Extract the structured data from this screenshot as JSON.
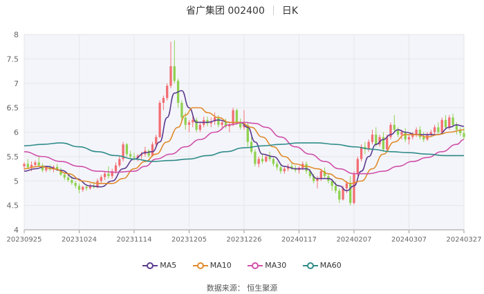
{
  "title": {
    "stock_name": "省广集团 002400",
    "period": "日K"
  },
  "source": "数据来源： 恒生聚源",
  "colors": {
    "up": "#f26d72",
    "down": "#8fd14f",
    "ma5": "#5b3a8e",
    "ma10": "#e08a2b",
    "ma30": "#d04fa8",
    "ma60": "#2e8b88",
    "grid": "#e6e6e6",
    "plot_bg": "#f4f5fb"
  },
  "chart_data": {
    "type": "candlestick",
    "x_ticks": [
      "20230925",
      "20231024",
      "20231114",
      "20231205",
      "20231226",
      "20240117",
      "20240207",
      "20240307",
      "20240327"
    ],
    "y_ticks": [
      "4",
      "4.5",
      "5",
      "5.5",
      "6",
      "6.5",
      "7",
      "7.5",
      "8"
    ],
    "ylim": [
      4,
      8
    ],
    "num_days": 121,
    "x_tick_index": [
      0,
      15,
      30,
      45,
      60,
      75,
      90,
      105,
      120
    ],
    "legend": [
      "MA5",
      "MA10",
      "MA30",
      "MA60"
    ],
    "ohlc": [
      [
        5.3,
        5.38,
        5.22,
        5.35
      ],
      [
        5.35,
        5.45,
        5.25,
        5.28
      ],
      [
        5.28,
        5.4,
        5.2,
        5.33
      ],
      [
        5.33,
        5.42,
        5.28,
        5.38
      ],
      [
        5.38,
        5.5,
        5.3,
        5.32
      ],
      [
        5.32,
        5.36,
        5.18,
        5.22
      ],
      [
        5.22,
        5.3,
        5.18,
        5.27
      ],
      [
        5.27,
        5.33,
        5.2,
        5.24
      ],
      [
        5.24,
        5.32,
        5.18,
        5.29
      ],
      [
        5.29,
        5.35,
        5.2,
        5.23
      ],
      [
        5.23,
        5.27,
        5.1,
        5.13
      ],
      [
        5.13,
        5.18,
        5.02,
        5.07
      ],
      [
        5.07,
        5.12,
        4.98,
        5.02
      ],
      [
        5.02,
        5.1,
        4.92,
        4.96
      ],
      [
        4.96,
        5.0,
        4.85,
        4.9
      ],
      [
        4.9,
        4.95,
        4.75,
        4.82
      ],
      [
        4.82,
        4.9,
        4.78,
        4.88
      ],
      [
        4.88,
        4.92,
        4.8,
        4.85
      ],
      [
        4.85,
        4.95,
        4.82,
        4.9
      ],
      [
        4.9,
        4.98,
        4.85,
        4.87
      ],
      [
        4.87,
        5.05,
        4.85,
        5.0
      ],
      [
        5.0,
        5.12,
        4.96,
        5.08
      ],
      [
        5.08,
        5.2,
        5.02,
        5.15
      ],
      [
        5.15,
        5.3,
        5.05,
        5.1
      ],
      [
        5.1,
        5.25,
        5.05,
        5.2
      ],
      [
        5.2,
        5.38,
        5.15,
        5.32
      ],
      [
        5.32,
        5.5,
        5.28,
        5.45
      ],
      [
        5.45,
        5.8,
        5.4,
        5.75
      ],
      [
        5.75,
        5.78,
        5.5,
        5.55
      ],
      [
        5.55,
        5.62,
        5.45,
        5.5
      ],
      [
        5.5,
        5.58,
        5.42,
        5.48
      ],
      [
        5.48,
        5.55,
        5.4,
        5.52
      ],
      [
        5.52,
        5.6,
        5.45,
        5.55
      ],
      [
        5.55,
        5.7,
        5.5,
        5.62
      ],
      [
        5.62,
        5.65,
        5.48,
        5.52
      ],
      [
        5.52,
        5.8,
        5.5,
        5.75
      ],
      [
        5.75,
        5.95,
        5.7,
        5.9
      ],
      [
        5.9,
        6.65,
        5.88,
        6.6
      ],
      [
        6.6,
        6.75,
        6.45,
        6.7
      ],
      [
        6.7,
        7.0,
        6.65,
        6.95
      ],
      [
        6.95,
        7.85,
        6.9,
        7.35
      ],
      [
        7.35,
        7.88,
        7.0,
        7.05
      ],
      [
        7.05,
        7.1,
        6.5,
        6.6
      ],
      [
        6.6,
        6.65,
        6.2,
        6.3
      ],
      [
        6.3,
        6.4,
        6.05,
        6.15
      ],
      [
        6.15,
        6.25,
        6.0,
        6.2
      ],
      [
        6.2,
        6.35,
        6.1,
        6.25
      ],
      [
        6.25,
        6.3,
        6.0,
        6.05
      ],
      [
        6.05,
        6.2,
        6.0,
        6.15
      ],
      [
        6.15,
        6.32,
        6.1,
        6.25
      ],
      [
        6.25,
        6.32,
        6.12,
        6.18
      ],
      [
        6.18,
        6.3,
        6.1,
        6.22
      ],
      [
        6.22,
        6.4,
        6.15,
        6.3
      ],
      [
        6.3,
        6.35,
        6.1,
        6.15
      ],
      [
        6.15,
        6.25,
        6.05,
        6.2
      ],
      [
        6.2,
        6.28,
        6.08,
        6.12
      ],
      [
        6.12,
        6.2,
        6.0,
        6.15
      ],
      [
        6.15,
        6.5,
        6.12,
        6.45
      ],
      [
        6.45,
        6.48,
        6.15,
        6.2
      ],
      [
        6.2,
        6.28,
        6.05,
        6.1
      ],
      [
        6.1,
        6.45,
        6.05,
        6.15
      ],
      [
        6.15,
        6.2,
        5.7,
        5.8
      ],
      [
        5.8,
        5.9,
        5.55,
        5.6
      ],
      [
        5.6,
        5.65,
        5.3,
        5.35
      ],
      [
        5.35,
        5.5,
        5.28,
        5.45
      ],
      [
        5.45,
        5.55,
        5.35,
        5.4
      ],
      [
        5.4,
        5.55,
        5.38,
        5.5
      ],
      [
        5.5,
        5.6,
        5.4,
        5.45
      ],
      [
        5.45,
        5.5,
        5.3,
        5.35
      ],
      [
        5.35,
        5.4,
        5.22,
        5.28
      ],
      [
        5.28,
        5.35,
        5.15,
        5.2
      ],
      [
        5.2,
        5.3,
        5.15,
        5.25
      ],
      [
        5.25,
        5.35,
        5.2,
        5.3
      ],
      [
        5.3,
        5.38,
        5.22,
        5.26
      ],
      [
        5.26,
        5.32,
        5.18,
        5.22
      ],
      [
        5.22,
        5.3,
        5.15,
        5.27
      ],
      [
        5.27,
        5.4,
        5.22,
        5.35
      ],
      [
        5.35,
        5.4,
        5.15,
        5.2
      ],
      [
        5.2,
        5.25,
        5.05,
        5.1
      ],
      [
        5.1,
        5.15,
        4.95,
        5.0
      ],
      [
        5.0,
        5.1,
        4.85,
        5.05
      ],
      [
        5.05,
        5.25,
        5.0,
        5.2
      ],
      [
        5.2,
        5.28,
        5.05,
        5.1
      ],
      [
        5.1,
        5.15,
        4.95,
        5.0
      ],
      [
        5.0,
        5.05,
        4.8,
        4.9
      ],
      [
        4.9,
        4.98,
        4.75,
        4.8
      ],
      [
        4.8,
        4.85,
        4.55,
        4.62
      ],
      [
        4.62,
        4.9,
        4.6,
        4.85
      ],
      [
        4.85,
        5.0,
        4.75,
        4.95
      ],
      [
        4.95,
        5.1,
        4.5,
        4.55
      ],
      [
        4.55,
        5.2,
        4.52,
        5.15
      ],
      [
        5.15,
        5.5,
        5.1,
        5.45
      ],
      [
        5.45,
        5.75,
        5.4,
        5.7
      ],
      [
        5.7,
        5.8,
        5.55,
        5.65
      ],
      [
        5.65,
        5.85,
        5.6,
        5.8
      ],
      [
        5.8,
        6.05,
        5.75,
        5.95
      ],
      [
        5.95,
        6.1,
        5.7,
        5.75
      ],
      [
        5.75,
        5.95,
        5.7,
        5.9
      ],
      [
        5.9,
        6.0,
        5.6,
        5.65
      ],
      [
        5.65,
        5.95,
        5.62,
        5.9
      ],
      [
        5.9,
        6.2,
        5.85,
        6.15
      ],
      [
        6.15,
        6.35,
        6.0,
        6.05
      ],
      [
        6.05,
        6.1,
        5.9,
        5.95
      ],
      [
        5.95,
        6.05,
        5.85,
        6.0
      ],
      [
        6.0,
        6.08,
        5.8,
        5.85
      ],
      [
        5.85,
        5.95,
        5.75,
        5.9
      ],
      [
        5.9,
        6.0,
        5.85,
        5.95
      ],
      [
        5.95,
        6.1,
        5.9,
        6.05
      ],
      [
        6.05,
        6.12,
        5.85,
        5.9
      ],
      [
        5.9,
        6.0,
        5.8,
        5.85
      ],
      [
        5.85,
        6.0,
        5.82,
        5.95
      ],
      [
        5.95,
        6.05,
        5.9,
        6.0
      ],
      [
        6.0,
        6.15,
        5.95,
        6.1
      ],
      [
        6.1,
        6.2,
        5.95,
        6.0
      ],
      [
        6.0,
        6.3,
        5.98,
        6.25
      ],
      [
        6.25,
        6.35,
        6.05,
        6.1
      ],
      [
        6.1,
        6.35,
        6.05,
        6.3
      ],
      [
        6.3,
        6.38,
        6.1,
        6.15
      ],
      [
        6.15,
        6.2,
        5.95,
        6.05
      ],
      [
        6.05,
        6.1,
        5.92,
        5.98
      ],
      [
        5.98,
        6.1,
        5.85,
        5.9
      ]
    ],
    "ma": {
      "MA5": [
        [
          0,
          5.2
        ],
        [
          3,
          5.25
        ],
        [
          6,
          5.3
        ],
        [
          10,
          5.22
        ],
        [
          14,
          5.05
        ],
        [
          18,
          4.9
        ],
        [
          21,
          4.88
        ],
        [
          24,
          5.0
        ],
        [
          27,
          5.25
        ],
        [
          30,
          5.45
        ],
        [
          33,
          5.58
        ],
        [
          35,
          5.6
        ],
        [
          37,
          5.8
        ],
        [
          39,
          6.3
        ],
        [
          41,
          6.8
        ],
        [
          43,
          6.85
        ],
        [
          45,
          6.5
        ],
        [
          47,
          6.2
        ],
        [
          50,
          6.2
        ],
        [
          53,
          6.25
        ],
        [
          56,
          6.2
        ],
        [
          59,
          6.2
        ],
        [
          61,
          6.1
        ],
        [
          63,
          5.8
        ],
        [
          65,
          5.55
        ],
        [
          68,
          5.5
        ],
        [
          71,
          5.3
        ],
        [
          74,
          5.25
        ],
        [
          77,
          5.25
        ],
        [
          80,
          5.05
        ],
        [
          83,
          5.05
        ],
        [
          86,
          4.9
        ],
        [
          88,
          4.8
        ],
        [
          90,
          4.9
        ],
        [
          92,
          5.2
        ],
        [
          94,
          5.5
        ],
        [
          96,
          5.75
        ],
        [
          98,
          5.85
        ],
        [
          100,
          5.95
        ],
        [
          102,
          6.05
        ],
        [
          104,
          6.0
        ],
        [
          107,
          5.95
        ],
        [
          110,
          5.95
        ],
        [
          113,
          5.95
        ],
        [
          116,
          6.1
        ],
        [
          118,
          6.15
        ],
        [
          120,
          6.12
        ]
      ],
      "MA10": [
        [
          0,
          5.25
        ],
        [
          4,
          5.3
        ],
        [
          8,
          5.25
        ],
        [
          12,
          5.15
        ],
        [
          16,
          5.0
        ],
        [
          20,
          4.95
        ],
        [
          24,
          4.95
        ],
        [
          27,
          5.05
        ],
        [
          30,
          5.25
        ],
        [
          33,
          5.4
        ],
        [
          36,
          5.55
        ],
        [
          39,
          5.8
        ],
        [
          42,
          6.1
        ],
        [
          44,
          6.35
        ],
        [
          46,
          6.5
        ],
        [
          48,
          6.5
        ],
        [
          50,
          6.4
        ],
        [
          53,
          6.3
        ],
        [
          56,
          6.2
        ],
        [
          59,
          6.2
        ],
        [
          62,
          6.1
        ],
        [
          65,
          5.9
        ],
        [
          68,
          5.7
        ],
        [
          71,
          5.5
        ],
        [
          74,
          5.35
        ],
        [
          77,
          5.3
        ],
        [
          80,
          5.25
        ],
        [
          83,
          5.15
        ],
        [
          86,
          5.05
        ],
        [
          89,
          4.95
        ],
        [
          92,
          5.0
        ],
        [
          95,
          5.25
        ],
        [
          98,
          5.55
        ],
        [
          101,
          5.8
        ],
        [
          104,
          5.95
        ],
        [
          107,
          5.95
        ],
        [
          110,
          5.9
        ],
        [
          113,
          5.95
        ],
        [
          116,
          6.0
        ],
        [
          120,
          6.05
        ]
      ],
      "MA30": [
        [
          0,
          5.6
        ],
        [
          5,
          5.5
        ],
        [
          10,
          5.4
        ],
        [
          15,
          5.3
        ],
        [
          20,
          5.2
        ],
        [
          25,
          5.18
        ],
        [
          30,
          5.2
        ],
        [
          33,
          5.3
        ],
        [
          36,
          5.45
        ],
        [
          40,
          5.55
        ],
        [
          44,
          5.7
        ],
        [
          48,
          5.85
        ],
        [
          52,
          6.0
        ],
        [
          56,
          6.15
        ],
        [
          60,
          6.2
        ],
        [
          63,
          6.18
        ],
        [
          66,
          6.1
        ],
        [
          70,
          5.9
        ],
        [
          74,
          5.7
        ],
        [
          78,
          5.55
        ],
        [
          82,
          5.4
        ],
        [
          86,
          5.25
        ],
        [
          90,
          5.15
        ],
        [
          94,
          5.15
        ],
        [
          98,
          5.2
        ],
        [
          102,
          5.3
        ],
        [
          106,
          5.4
        ],
        [
          110,
          5.48
        ],
        [
          114,
          5.6
        ],
        [
          118,
          5.75
        ],
        [
          120,
          5.85
        ]
      ],
      "MA60": [
        [
          0,
          5.72
        ],
        [
          5,
          5.75
        ],
        [
          10,
          5.78
        ],
        [
          15,
          5.7
        ],
        [
          20,
          5.6
        ],
        [
          25,
          5.52
        ],
        [
          30,
          5.45
        ],
        [
          35,
          5.4
        ],
        [
          40,
          5.42
        ],
        [
          45,
          5.45
        ],
        [
          50,
          5.52
        ],
        [
          55,
          5.6
        ],
        [
          60,
          5.68
        ],
        [
          65,
          5.72
        ],
        [
          70,
          5.75
        ],
        [
          75,
          5.78
        ],
        [
          80,
          5.78
        ],
        [
          85,
          5.75
        ],
        [
          90,
          5.7
        ],
        [
          95,
          5.65
        ],
        [
          100,
          5.6
        ],
        [
          105,
          5.58
        ],
        [
          110,
          5.55
        ],
        [
          115,
          5.52
        ],
        [
          120,
          5.52
        ]
      ]
    }
  }
}
